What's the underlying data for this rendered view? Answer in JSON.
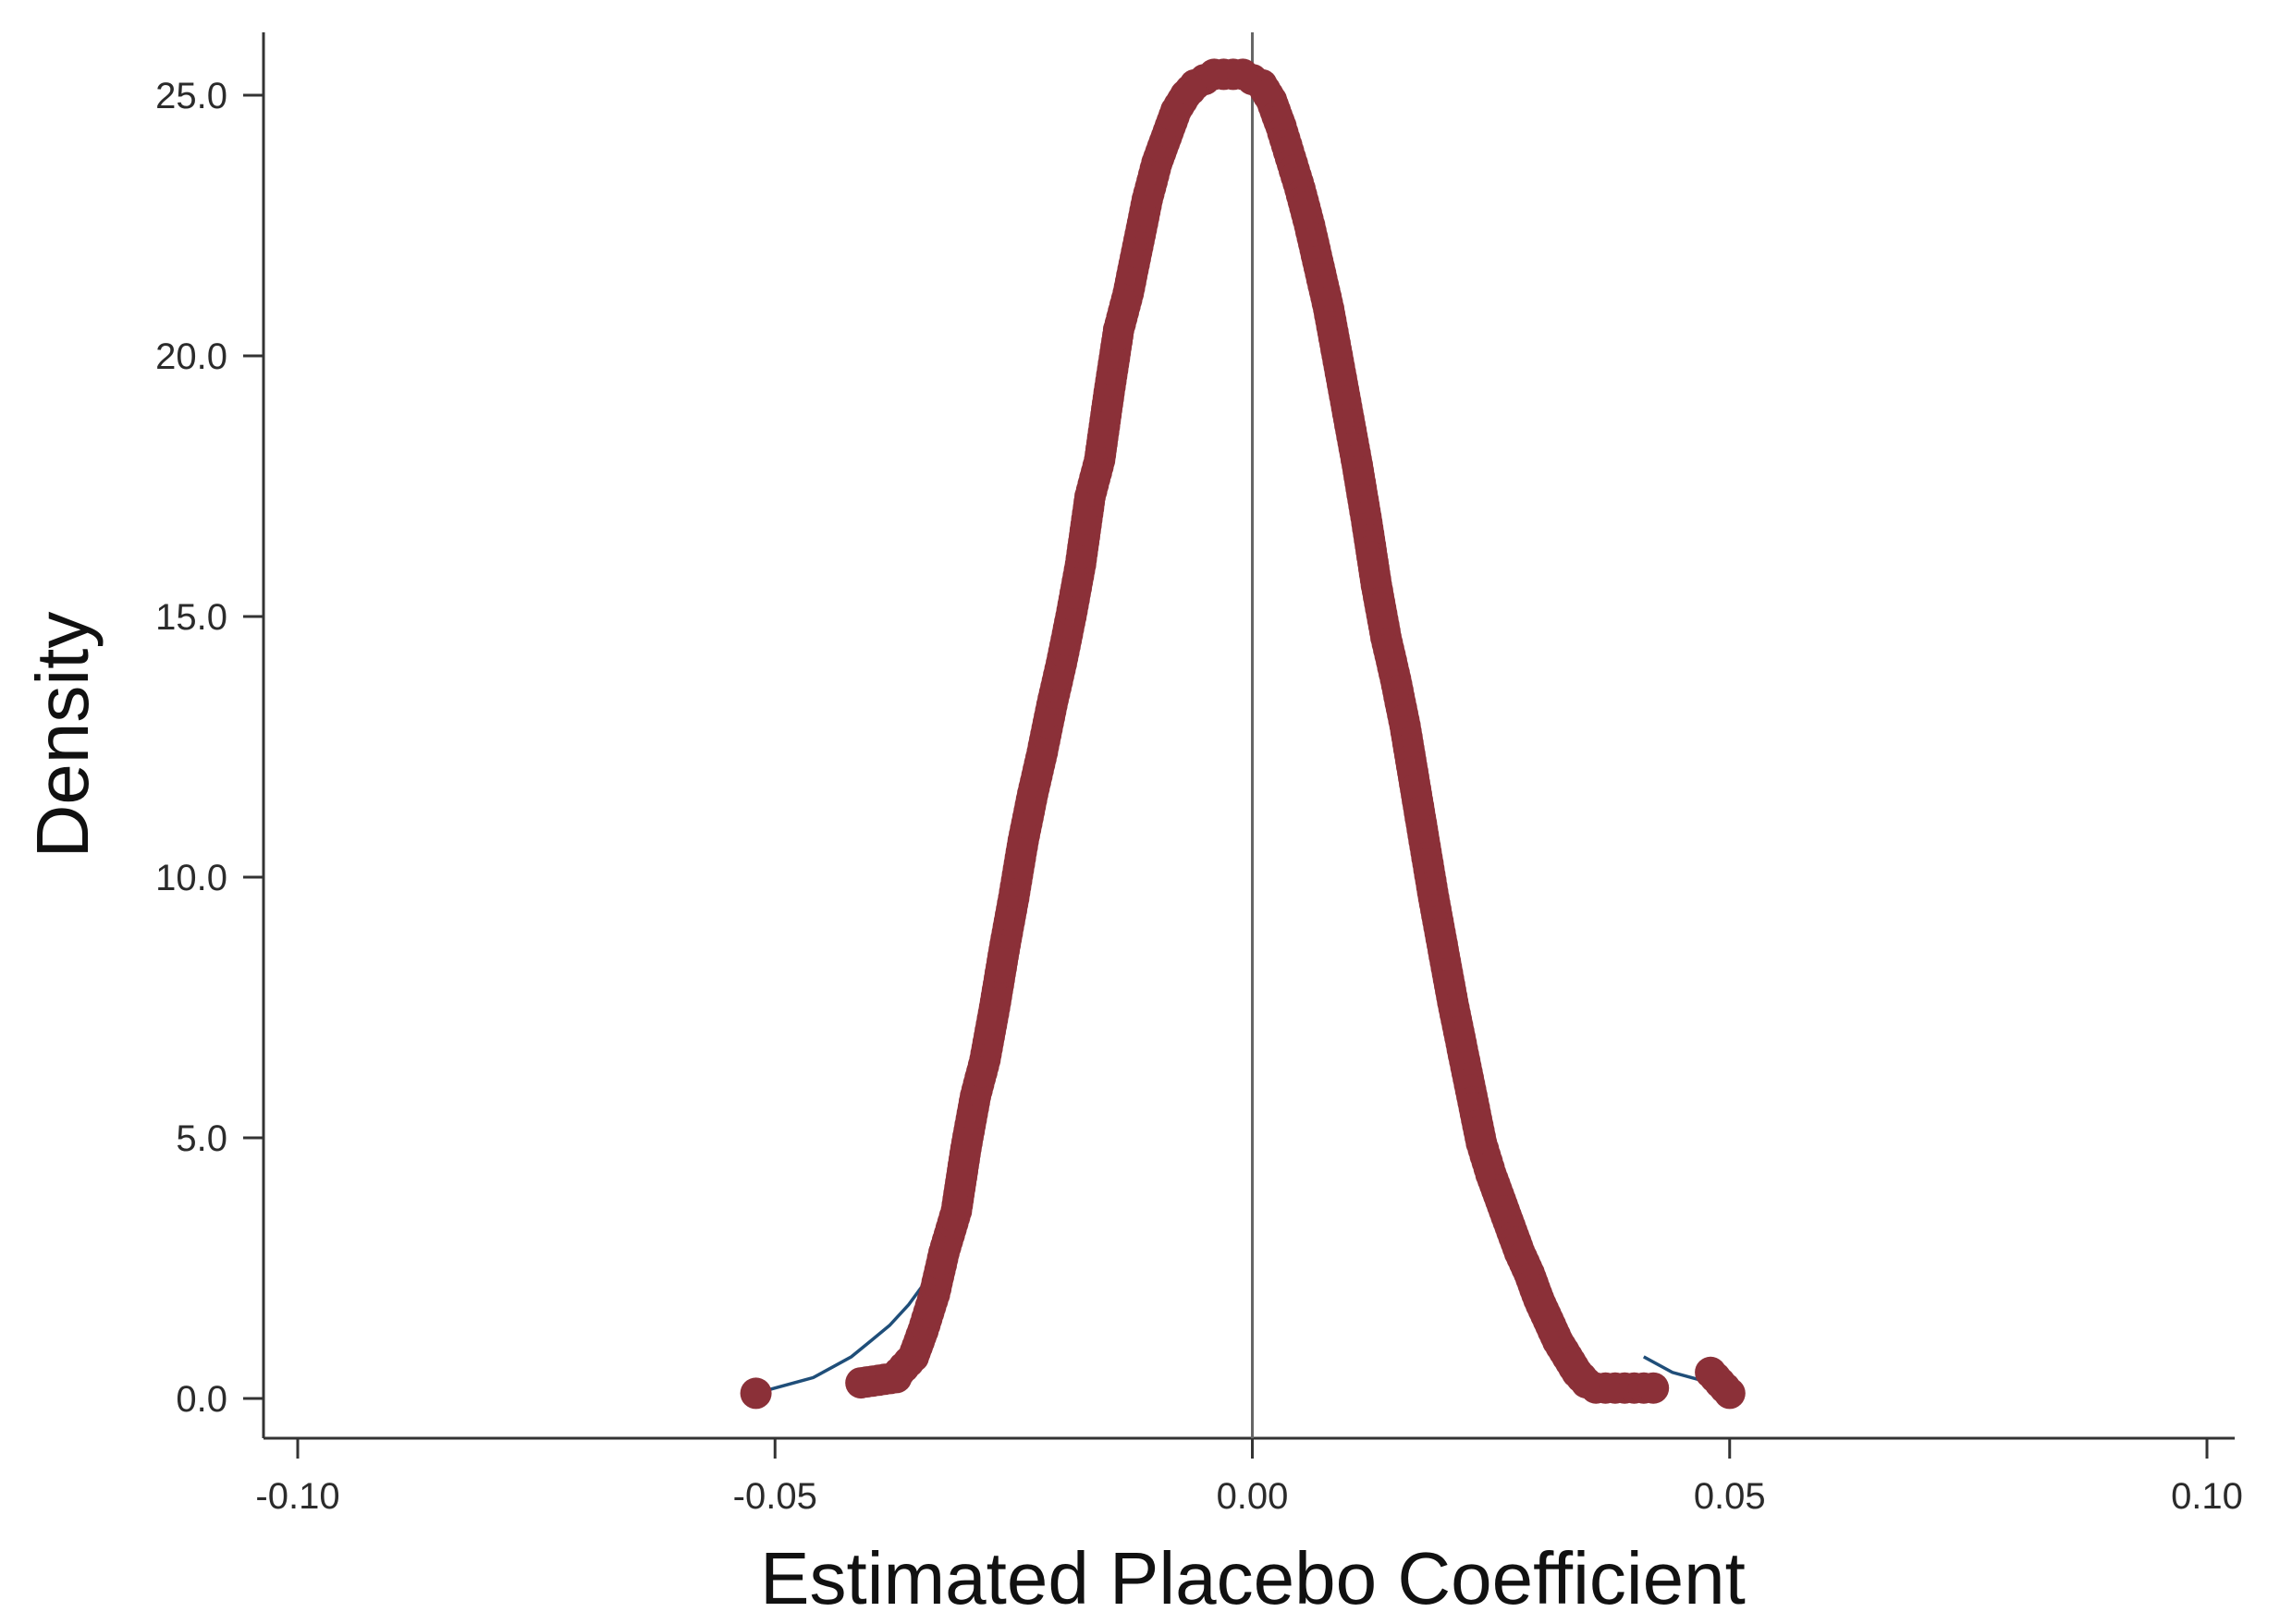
{
  "chart_data": {
    "type": "scatter",
    "title": "",
    "xlabel": "Estimated Placebo Coefficient",
    "ylabel": "Density",
    "xlim": [
      -0.1,
      0.1
    ],
    "ylim": [
      0,
      25.0
    ],
    "x_ticks": [
      -0.1,
      -0.05,
      0.0,
      0.05,
      0.1
    ],
    "x_tick_labels": [
      "-0.10",
      "-0.05",
      "0.00",
      "0.05",
      "0.10"
    ],
    "y_ticks": [
      0,
      5,
      10,
      15,
      20,
      25
    ],
    "y_tick_labels": [
      "0.0",
      "5.0",
      "10.0",
      "15.0",
      "20.0",
      "25.0"
    ],
    "reference_line_x": 0.0,
    "grid": false,
    "legend": "none",
    "colors": {
      "points": "#8b3038",
      "fitted_curve": "#1f4e79",
      "axis": "#333333",
      "reference_line": "#666666"
    },
    "series": [
      {
        "kind": "points",
        "x": [
          -0.052,
          -0.041,
          -0.0373,
          -0.037,
          -0.0355,
          -0.0345,
          -0.0333,
          -0.0323,
          -0.031,
          -0.03,
          -0.029,
          -0.028,
          -0.027,
          -0.026,
          -0.025,
          -0.024,
          -0.023,
          -0.022,
          -0.021,
          -0.02,
          -0.019,
          -0.018,
          -0.017,
          -0.016,
          -0.015,
          -0.014,
          -0.013,
          -0.012,
          -0.011,
          -0.01,
          -0.009,
          -0.008,
          -0.007,
          -0.006,
          -0.005,
          -0.004,
          -0.003,
          -0.002,
          -0.001,
          0.0,
          0.001,
          0.002,
          0.003,
          0.004,
          0.005,
          0.006,
          0.007,
          0.008,
          0.009,
          0.01,
          0.011,
          0.012,
          0.013,
          0.014,
          0.015,
          0.016,
          0.017,
          0.018,
          0.019,
          0.02,
          0.021,
          0.022,
          0.023,
          0.024,
          0.025,
          0.026,
          0.027,
          0.028,
          0.029,
          0.03,
          0.031,
          0.032,
          0.033,
          0.034,
          0.035,
          0.036,
          0.037,
          0.038,
          0.039,
          0.04,
          0.041,
          0.042,
          0.048,
          0.049,
          0.05
        ],
        "y": [
          0.1,
          0.3,
          0.4,
          0.5,
          0.8,
          1.3,
          2.0,
          2.8,
          3.6,
          4.8,
          5.8,
          6.5,
          7.5,
          8.6,
          9.6,
          10.7,
          11.6,
          12.4,
          13.3,
          14.1,
          15.0,
          16.0,
          17.3,
          18.0,
          19.3,
          20.5,
          21.2,
          22.1,
          23.0,
          23.7,
          24.2,
          24.7,
          25.0,
          25.2,
          25.3,
          25.4,
          25.4,
          25.4,
          25.4,
          25.3,
          25.2,
          24.9,
          24.4,
          23.8,
          23.2,
          22.5,
          21.7,
          20.9,
          19.9,
          18.9,
          17.9,
          16.8,
          15.6,
          14.6,
          13.8,
          12.9,
          11.8,
          10.7,
          9.6,
          8.6,
          7.6,
          6.7,
          5.8,
          4.9,
          4.3,
          3.8,
          3.3,
          2.8,
          2.4,
          1.9,
          1.5,
          1.1,
          0.8,
          0.5,
          0.3,
          0.2,
          0.2,
          0.2,
          0.2,
          0.2,
          0.2,
          0.2,
          0.5,
          0.3,
          0.1
        ]
      },
      {
        "kind": "fitted_curve",
        "x": [
          -0.052,
          -0.05,
          -0.048,
          -0.046,
          -0.044,
          -0.042,
          -0.04,
          -0.038,
          -0.036,
          -0.034,
          -0.033,
          0.041,
          0.044,
          0.046,
          0.048
        ],
        "y": [
          0.1,
          0.2,
          0.3,
          0.4,
          0.6,
          0.8,
          1.1,
          1.4,
          1.8,
          2.3,
          2.6,
          0.8,
          0.5,
          0.4,
          0.3
        ]
      }
    ]
  }
}
